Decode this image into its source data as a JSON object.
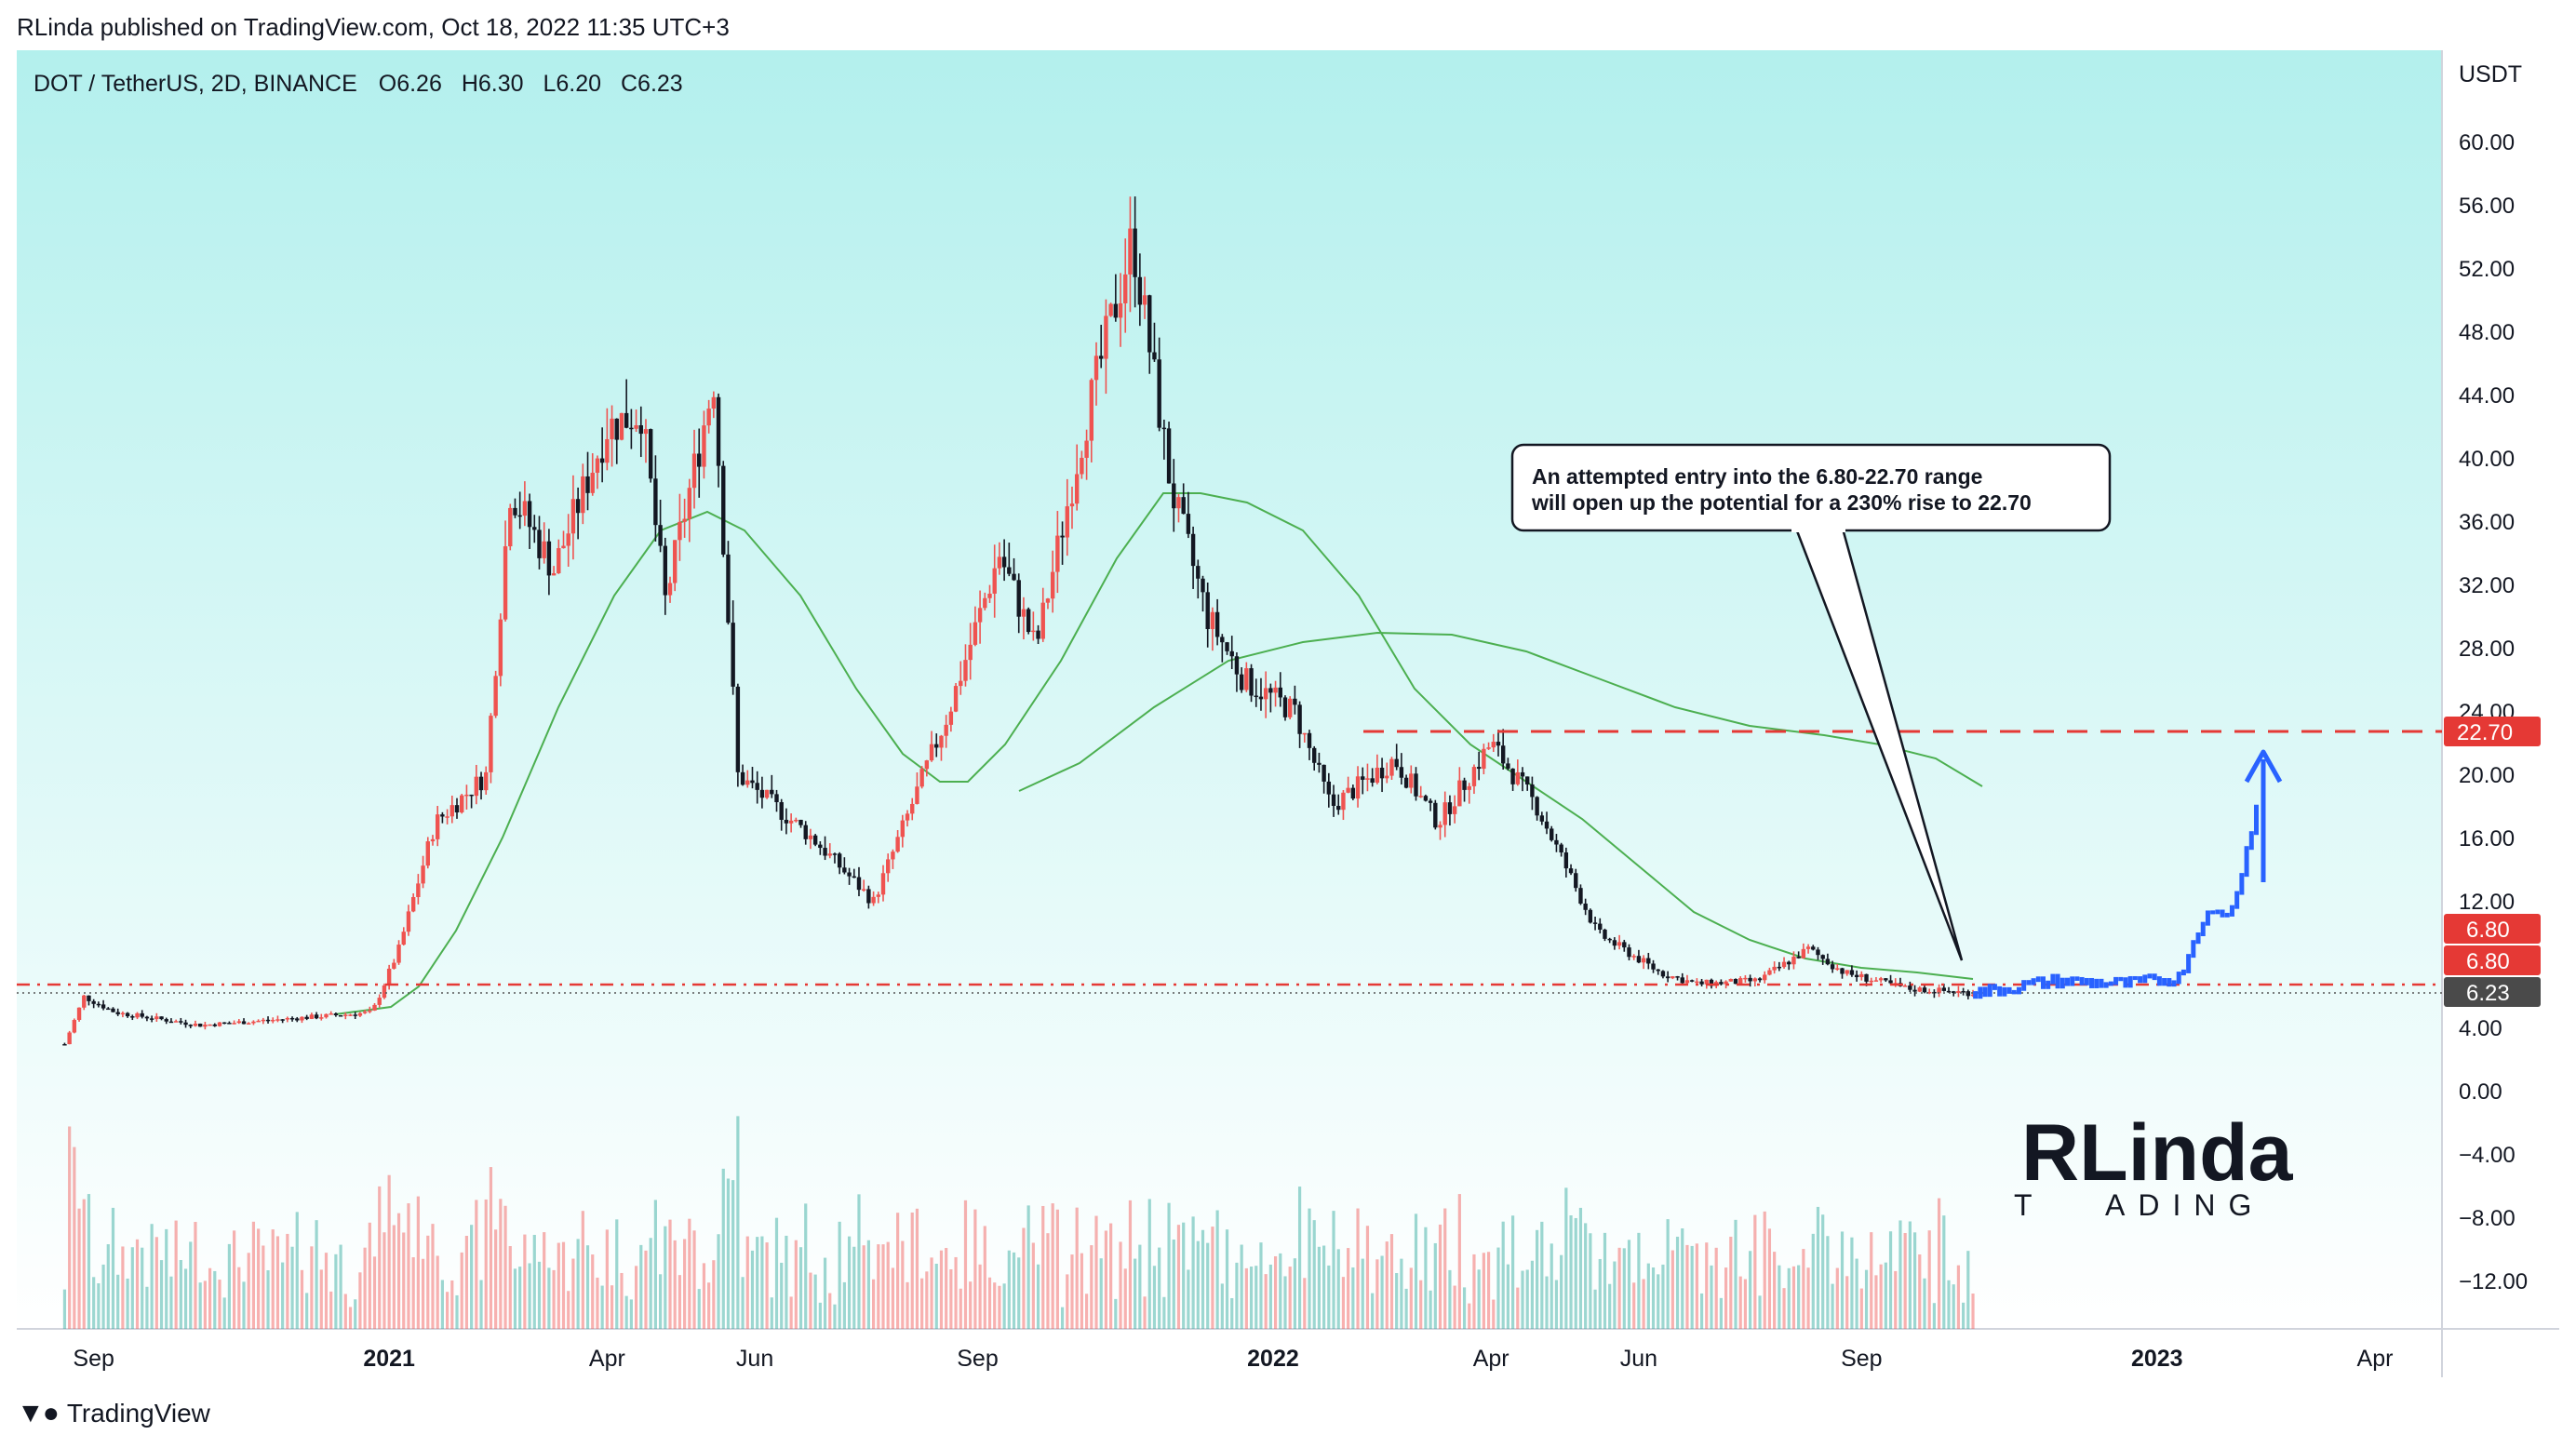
{
  "header": {
    "publisher": "RLinda published on TradingView.com, Oct 18, 2022 11:35 UTC+3"
  },
  "symbol_bar": {
    "symbol": "DOT / TetherUS, 2D, BINANCE",
    "open": "O6.26",
    "high": "H6.30",
    "low": "L6.20",
    "close": "C6.23"
  },
  "axis": {
    "currency": "USDT",
    "ticks": [
      "60.00",
      "56.00",
      "52.00",
      "48.00",
      "44.00",
      "40.00",
      "36.00",
      "32.00",
      "28.00",
      "24.00",
      "20.00",
      "16.00",
      "12.00",
      "4.00",
      "0.00",
      "−4.00",
      "−8.00",
      "−12.00"
    ],
    "price_tags": {
      "target": "22.70",
      "entry_1": "6.80",
      "entry_2": "6.80",
      "last": "6.23"
    },
    "x_labels": [
      "Sep",
      "2021",
      "Apr",
      "Jun",
      "Sep",
      "2022",
      "Apr",
      "Jun",
      "Sep",
      "2023",
      "Apr"
    ]
  },
  "annotation": {
    "line1": "An attempted entry into the 6.80-22.70 range",
    "line2": "will open up the potential for a 230% rise to 22.70"
  },
  "watermark": {
    "line1": "RLinda",
    "line2_left": "T",
    "line2_right": "ADING"
  },
  "footer": {
    "brand": "TradingView"
  },
  "colors": {
    "background_top": "#b3f0ed",
    "background_bottom": "#ffffff",
    "up": "#ef5350",
    "down": "#131722",
    "ma": "#4caf50",
    "forecast": "#2962ff",
    "level": "#e53935",
    "last_tag": "#4a4a4a"
  },
  "chart_data": {
    "type": "candlestick",
    "title": "DOT / TetherUS, 2D, BINANCE",
    "y_unit": "USDT",
    "ylim": [
      -12,
      64
    ],
    "x_range": [
      "2020-08",
      "2023-04"
    ],
    "levels": [
      {
        "label": "22.70",
        "value": 22.7,
        "style": "dashed"
      },
      {
        "label": "6.80",
        "value": 6.8,
        "style": "dash-dot"
      },
      {
        "label": "6.23",
        "value": 6.23,
        "style": "dotted"
      }
    ],
    "price_path": [
      [
        "2020-08-20",
        3.0
      ],
      [
        "2020-08-28",
        6.0
      ],
      [
        "2020-09-10",
        5.0
      ],
      [
        "2020-10-15",
        4.2
      ],
      [
        "2020-11-20",
        4.6
      ],
      [
        "2020-12-25",
        5.0
      ],
      [
        "2021-01-05",
        9.0
      ],
      [
        "2021-01-20",
        17.0
      ],
      [
        "2021-02-10",
        20.0
      ],
      [
        "2021-02-20",
        38.0
      ],
      [
        "2021-03-10",
        33.0
      ],
      [
        "2021-04-01",
        42.0
      ],
      [
        "2021-04-15",
        43.0
      ],
      [
        "2021-04-25",
        31.0
      ],
      [
        "2021-05-15",
        45.0
      ],
      [
        "2021-05-25",
        20.0
      ],
      [
        "2021-06-25",
        16.0
      ],
      [
        "2021-07-20",
        12.0
      ],
      [
        "2021-08-20",
        24.0
      ],
      [
        "2021-09-10",
        34.0
      ],
      [
        "2021-09-25",
        28.0
      ],
      [
        "2021-10-15",
        42.0
      ],
      [
        "2021-11-04",
        54.0
      ],
      [
        "2021-11-20",
        38.0
      ],
      [
        "2021-12-05",
        30.0
      ],
      [
        "2021-12-20",
        26.0
      ],
      [
        "2022-01-10",
        24.0
      ],
      [
        "2022-01-25",
        18.0
      ],
      [
        "2022-02-20",
        21.0
      ],
      [
        "2022-03-10",
        17.0
      ],
      [
        "2022-04-01",
        22.0
      ],
      [
        "2022-04-20",
        18.0
      ],
      [
        "2022-05-15",
        10.0
      ],
      [
        "2022-06-10",
        7.5
      ],
      [
        "2022-06-25",
        6.8
      ],
      [
        "2022-07-20",
        7.0
      ],
      [
        "2022-08-10",
        9.0
      ],
      [
        "2022-08-25",
        7.5
      ],
      [
        "2022-09-20",
        6.5
      ],
      [
        "2022-10-18",
        6.23
      ]
    ],
    "forecast_path": [
      [
        "2022-10-18",
        6.23
      ],
      [
        "2022-11-20",
        7.0
      ],
      [
        "2022-12-20",
        6.8
      ],
      [
        "2023-01-10",
        7.2
      ],
      [
        "2023-01-20",
        11.0
      ],
      [
        "2023-02-01",
        11.5
      ],
      [
        "2023-02-15",
        20.5
      ],
      [
        "2023-02-22",
        22.7
      ]
    ]
  }
}
